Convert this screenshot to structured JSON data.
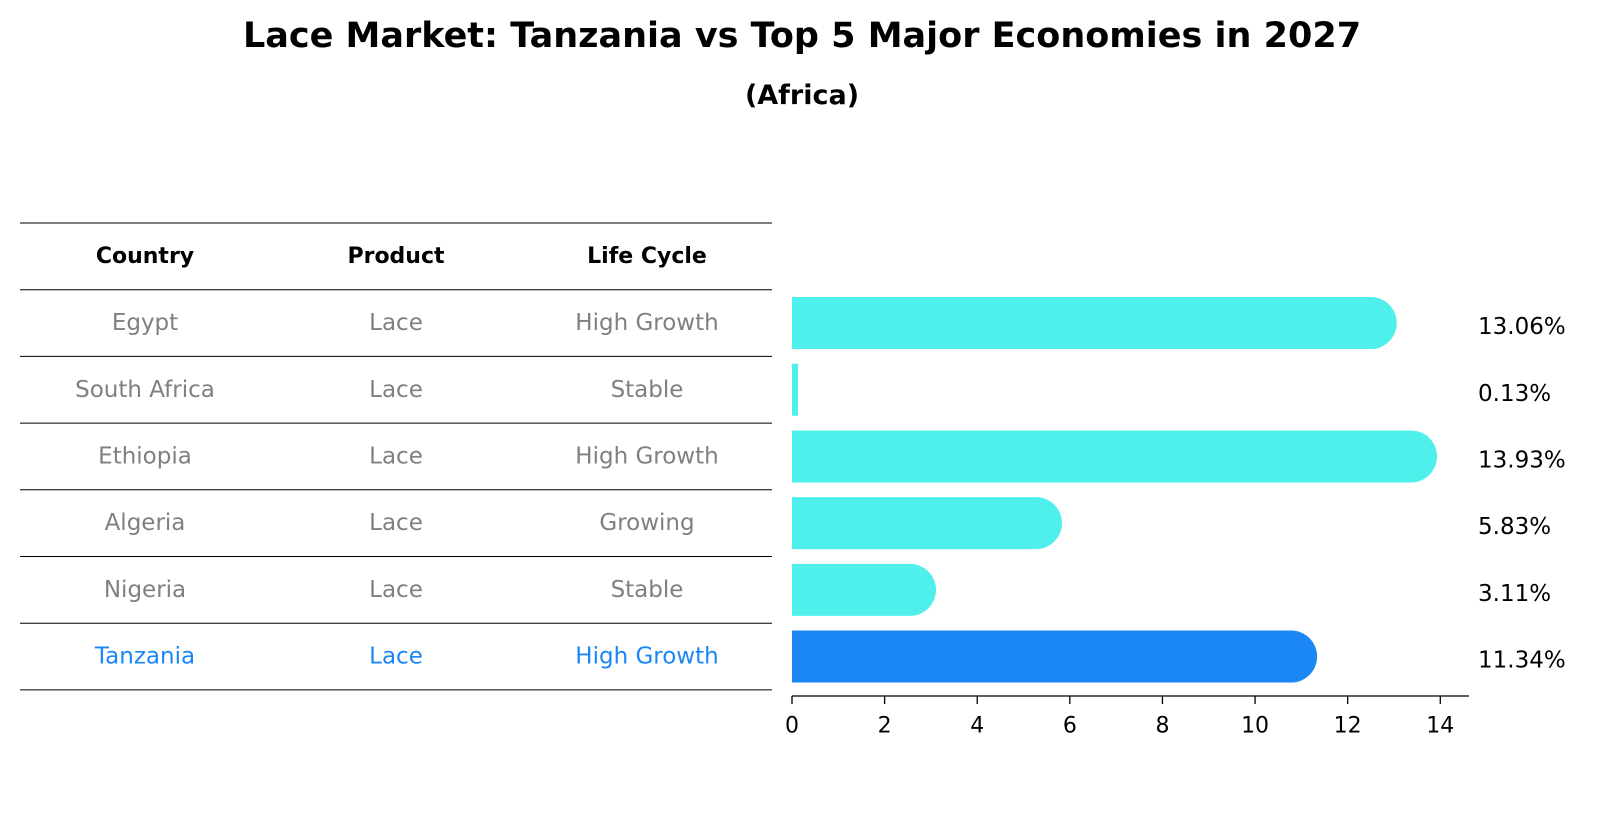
{
  "chart_data": {
    "type": "bar",
    "orientation": "horizontal",
    "title": "Lace Market: Tanzania vs Top 5 Major Economies in 2027",
    "subtitle": "(Africa)",
    "table": {
      "columns": [
        "Country",
        "Product",
        "Life Cycle"
      ],
      "rows": [
        [
          "Egypt",
          "Lace",
          "High Growth"
        ],
        [
          "South Africa",
          "Lace",
          "Stable"
        ],
        [
          "Ethiopia",
          "Lace",
          "High Growth"
        ],
        [
          "Algeria",
          "Lace",
          "Growing"
        ],
        [
          "Nigeria",
          "Lace",
          "Stable"
        ],
        [
          "Tanzania",
          "Lace",
          "High Growth"
        ]
      ]
    },
    "categories": [
      "Egypt",
      "South Africa",
      "Ethiopia",
      "Algeria",
      "Nigeria",
      "Tanzania"
    ],
    "values": [
      13.06,
      0.13,
      13.93,
      5.83,
      3.11,
      11.34
    ],
    "value_labels": [
      "13.06%",
      "0.13%",
      "13.93%",
      "5.83%",
      "3.11%",
      "11.34%"
    ],
    "highlight": "Tanzania",
    "xlim": [
      0,
      14.62
    ],
    "xticks": [
      0,
      2,
      4,
      6,
      8,
      10,
      12,
      14
    ],
    "xlabel": "",
    "ylabel": "",
    "grid": false,
    "colors": {
      "bar": "#4ff0eb",
      "highlight": "#1a87f5",
      "row_text": "#808080",
      "highlight_text": "#1a87f5",
      "header_text": "#000000"
    }
  }
}
